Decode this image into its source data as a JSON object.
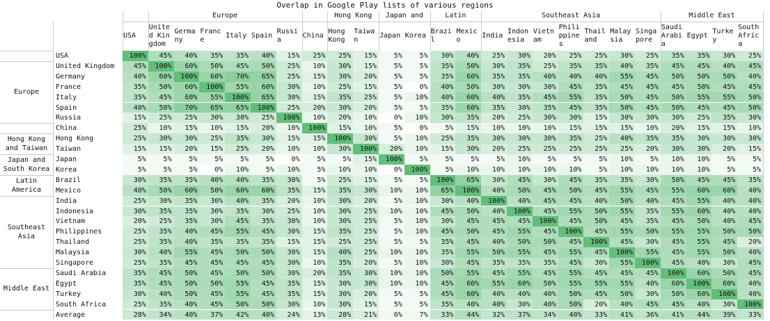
{
  "chart_data": {
    "type": "heatmap",
    "title": "Overlap in Google Play lists of various regions",
    "column_groups": [
      {
        "label": "",
        "count": 1
      },
      {
        "label": "Europe",
        "count": 6
      },
      {
        "label": "",
        "count": 1
      },
      {
        "label": "Hong Kong",
        "count": 2
      },
      {
        "label": "Japan and",
        "count": 2
      },
      {
        "label": "Latin",
        "count": 2
      },
      {
        "label": "Southeast Asia",
        "count": 7
      },
      {
        "label": "Middle East",
        "count": 4
      }
    ],
    "row_groups": [
      {
        "label": "",
        "count": 1
      },
      {
        "label": "Europe",
        "count": 6
      },
      {
        "label": "",
        "count": 1
      },
      {
        "label": "Hong Kong and Taiwan",
        "count": 2
      },
      {
        "label": "Japan and South Korea",
        "count": 2
      },
      {
        "label": "Latin America",
        "count": 2
      },
      {
        "label": "Southeast Asia",
        "count": 7
      },
      {
        "label": "Middle East",
        "count": 4
      },
      {
        "label": "",
        "count": 1
      }
    ],
    "columns": [
      "USA",
      "United Kingdom",
      "Germany",
      "France",
      "Italy",
      "Spain",
      "Russia",
      "China",
      "Hong Kong",
      "Taiwan",
      "Japan",
      "Korea",
      "Brazil",
      "Mexico",
      "India",
      "Indonesia",
      "Vietnam",
      "Philippines",
      "Thailand",
      "Malaysia",
      "Singapore",
      "Saudi Arabia",
      "Egypt",
      "Turkey",
      "South Africa"
    ],
    "rows": [
      "USA",
      "United Kingdom",
      "Germany",
      "France",
      "Italy",
      "Spain",
      "Russia",
      "China",
      "Hong Kong",
      "Taiwan",
      "Japan",
      "Korea",
      "Brazil",
      "Mexico",
      "India",
      "Indonesia",
      "Vietnam",
      "Philippines",
      "Thailand",
      "Malaysia",
      "Singapore",
      "Saudi Arabia",
      "Egypt",
      "Turkey",
      "South Africa",
      "Average"
    ],
    "values": [
      [
        100,
        45,
        40,
        35,
        35,
        40,
        15,
        25,
        25,
        15,
        5,
        5,
        30,
        40,
        25,
        30,
        20,
        25,
        25,
        30,
        25,
        35,
        35,
        30,
        25
      ],
      [
        45,
        100,
        60,
        50,
        45,
        50,
        25,
        10,
        30,
        15,
        5,
        5,
        35,
        50,
        30,
        35,
        25,
        35,
        35,
        40,
        35,
        45,
        45,
        40,
        45
      ],
      [
        40,
        60,
        100,
        60,
        70,
        65,
        25,
        15,
        30,
        20,
        5,
        5,
        35,
        60,
        35,
        35,
        40,
        40,
        40,
        55,
        45,
        50,
        50,
        50,
        40
      ],
      [
        35,
        50,
        60,
        100,
        55,
        60,
        30,
        10,
        25,
        15,
        5,
        0,
        40,
        50,
        30,
        30,
        30,
        45,
        35,
        45,
        45,
        45,
        50,
        45,
        45
      ],
      [
        35,
        45,
        60,
        55,
        100,
        65,
        30,
        15,
        35,
        25,
        5,
        10,
        40,
        60,
        40,
        35,
        45,
        55,
        35,
        50,
        45,
        50,
        55,
        55,
        50
      ],
      [
        40,
        50,
        70,
        65,
        65,
        100,
        25,
        20,
        30,
        20,
        5,
        5,
        35,
        60,
        35,
        30,
        35,
        45,
        35,
        50,
        45,
        50,
        45,
        45,
        50
      ],
      [
        15,
        25,
        25,
        30,
        30,
        25,
        100,
        10,
        20,
        10,
        0,
        10,
        30,
        35,
        20,
        25,
        30,
        30,
        15,
        30,
        30,
        30,
        25,
        35,
        30
      ],
      [
        25,
        10,
        15,
        10,
        15,
        20,
        10,
        100,
        15,
        10,
        5,
        0,
        5,
        15,
        10,
        10,
        10,
        15,
        15,
        15,
        10,
        20,
        15,
        15,
        10
      ],
      [
        25,
        30,
        30,
        25,
        35,
        30,
        15,
        15,
        100,
        30,
        5,
        10,
        25,
        35,
        30,
        30,
        30,
        35,
        25,
        40,
        35,
        35,
        30,
        30,
        30
      ],
      [
        15,
        15,
        20,
        15,
        25,
        20,
        10,
        10,
        30,
        100,
        20,
        10,
        15,
        30,
        20,
        25,
        25,
        25,
        25,
        25,
        20,
        30,
        30,
        20,
        15
      ],
      [
        5,
        5,
        5,
        5,
        5,
        5,
        0,
        5,
        5,
        15,
        100,
        5,
        5,
        5,
        5,
        10,
        5,
        5,
        5,
        10,
        5,
        10,
        10,
        5,
        5
      ],
      [
        5,
        5,
        5,
        0,
        10,
        5,
        10,
        5,
        10,
        10,
        0,
        100,
        5,
        10,
        10,
        10,
        10,
        10,
        5,
        10,
        10,
        10,
        10,
        5,
        5
      ],
      [
        30,
        35,
        35,
        40,
        40,
        35,
        30,
        5,
        25,
        15,
        5,
        5,
        100,
        65,
        30,
        45,
        30,
        45,
        35,
        35,
        30,
        50,
        45,
        45,
        35
      ],
      [
        40,
        50,
        60,
        50,
        60,
        60,
        35,
        15,
        35,
        30,
        10,
        10,
        65,
        100,
        40,
        50,
        45,
        50,
        45,
        55,
        45,
        55,
        60,
        60,
        40
      ],
      [
        25,
        30,
        35,
        30,
        40,
        35,
        20,
        10,
        30,
        20,
        5,
        10,
        30,
        40,
        100,
        40,
        45,
        45,
        40,
        50,
        40,
        45,
        55,
        40,
        40
      ],
      [
        30,
        35,
        35,
        30,
        35,
        30,
        25,
        10,
        30,
        25,
        10,
        10,
        45,
        50,
        40,
        100,
        45,
        55,
        50,
        55,
        35,
        55,
        60,
        40,
        40
      ],
      [
        20,
        25,
        35,
        30,
        45,
        35,
        30,
        10,
        30,
        25,
        5,
        10,
        30,
        45,
        45,
        45,
        100,
        45,
        50,
        45,
        35,
        45,
        50,
        40,
        45
      ],
      [
        25,
        35,
        40,
        45,
        55,
        45,
        30,
        15,
        35,
        25,
        5,
        10,
        45,
        50,
        45,
        55,
        45,
        100,
        45,
        55,
        50,
        55,
        55,
        50,
        50
      ],
      [
        25,
        35,
        40,
        35,
        35,
        35,
        15,
        15,
        25,
        25,
        5,
        5,
        35,
        45,
        40,
        50,
        50,
        45,
        100,
        45,
        30,
        45,
        55,
        45,
        20
      ],
      [
        30,
        40,
        55,
        45,
        50,
        50,
        30,
        15,
        40,
        25,
        10,
        10,
        35,
        55,
        50,
        55,
        45,
        55,
        45,
        100,
        55,
        45,
        55,
        50,
        40
      ],
      [
        25,
        35,
        45,
        45,
        45,
        45,
        30,
        10,
        35,
        20,
        5,
        10,
        30,
        45,
        35,
        35,
        35,
        45,
        30,
        55,
        100,
        45,
        40,
        30,
        45
      ],
      [
        35,
        45,
        50,
        45,
        50,
        50,
        30,
        20,
        35,
        30,
        10,
        10,
        50,
        55,
        45,
        55,
        45,
        55,
        45,
        45,
        45,
        100,
        60,
        50,
        45
      ],
      [
        35,
        45,
        50,
        50,
        55,
        45,
        35,
        15,
        30,
        30,
        10,
        10,
        45,
        60,
        55,
        60,
        50,
        55,
        55,
        55,
        40,
        60,
        100,
        60,
        40
      ],
      [
        30,
        40,
        50,
        45,
        55,
        45,
        35,
        15,
        30,
        20,
        5,
        5,
        45,
        60,
        40,
        40,
        40,
        50,
        45,
        50,
        30,
        50,
        60,
        100,
        40
      ],
      [
        25,
        35,
        40,
        45,
        50,
        50,
        30,
        10,
        30,
        15,
        5,
        5,
        35,
        40,
        40,
        30,
        40,
        50,
        20,
        40,
        45,
        45,
        40,
        30,
        100
      ],
      [
        28,
        34,
        40,
        37,
        42,
        40,
        24,
        13,
        28,
        21,
        6,
        7,
        33,
        44,
        32,
        37,
        34,
        40,
        33,
        41,
        36,
        41,
        44,
        39,
        33
      ]
    ],
    "value_format": "percent",
    "color_scale": {
      "low": "#ffffff",
      "high": "#63be7b"
    }
  }
}
